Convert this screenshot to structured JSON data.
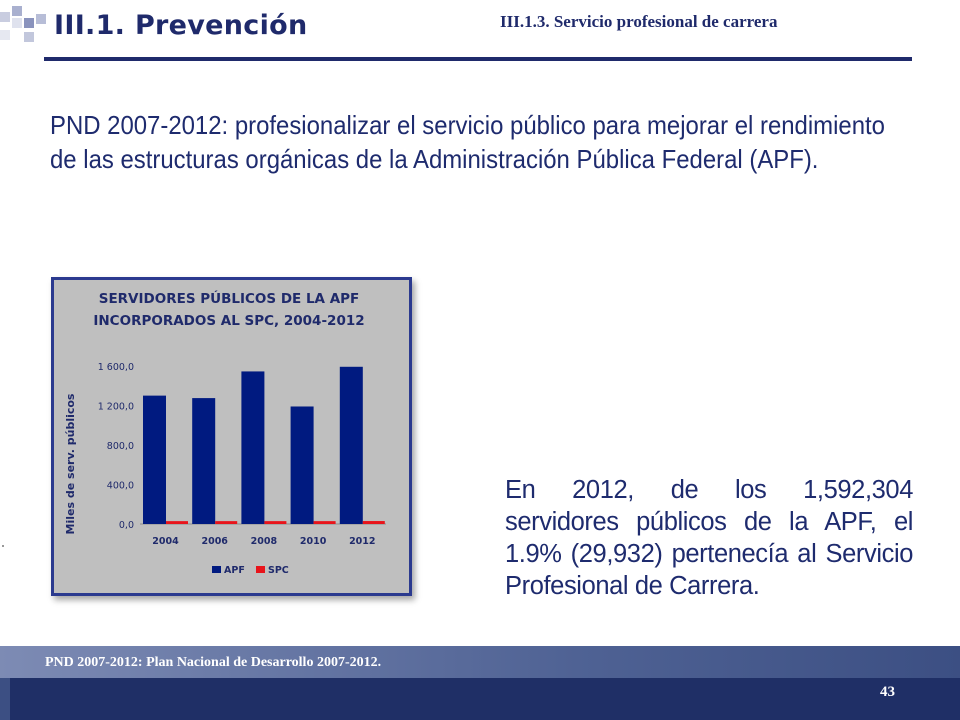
{
  "header": {
    "title": "III.1. Prevención",
    "subtitle": "III.1.3. Servicio profesional de carrera"
  },
  "lead_text": "PND 2007-2012: profesionalizar el servicio público para mejorar el rendimiento de las estructuras orgánicas de la Administración Pública Federal (APF).",
  "body_text": "En 2012, de los 1,592,304 servidores públicos de la APF, el 1.9% (29,932) pertenecía al Servicio Profesional de Carrera.",
  "footer": {
    "note": "PND 2007-2012: Plan Nacional de Desarrollo 2007-2012.",
    "page_number": "43"
  },
  "colors": {
    "navy": "#1f2a6b",
    "bar_apf": "#001a80",
    "bar_spc": "#e8141b",
    "chart_bg": "#bfbfbf"
  },
  "chart_data": {
    "type": "bar",
    "title_lines": [
      "SERVIDORES PÚBLICOS DE LA APF",
      "INCORPORADOS AL SPC, 2004-2012"
    ],
    "ylabel": "Miles de serv. públicos",
    "categories": [
      "2004",
      "2006",
      "2008",
      "2010",
      "2012"
    ],
    "series": [
      {
        "name": "APF",
        "values": [
          1300,
          1275,
          1545,
          1190,
          1592
        ],
        "color": "#001a80"
      },
      {
        "name": "SPC",
        "values": [
          29,
          29,
          29,
          29,
          29.9
        ],
        "color": "#e8141b"
      }
    ],
    "ylim": [
      0,
      1600
    ],
    "yticks": [
      0,
      400,
      800,
      1200,
      1600
    ],
    "ytick_labels": [
      "0,0",
      "400,0",
      "800,0",
      "1 200,0",
      "1 600,0"
    ],
    "legend": "bottom-center",
    "grid": false
  }
}
